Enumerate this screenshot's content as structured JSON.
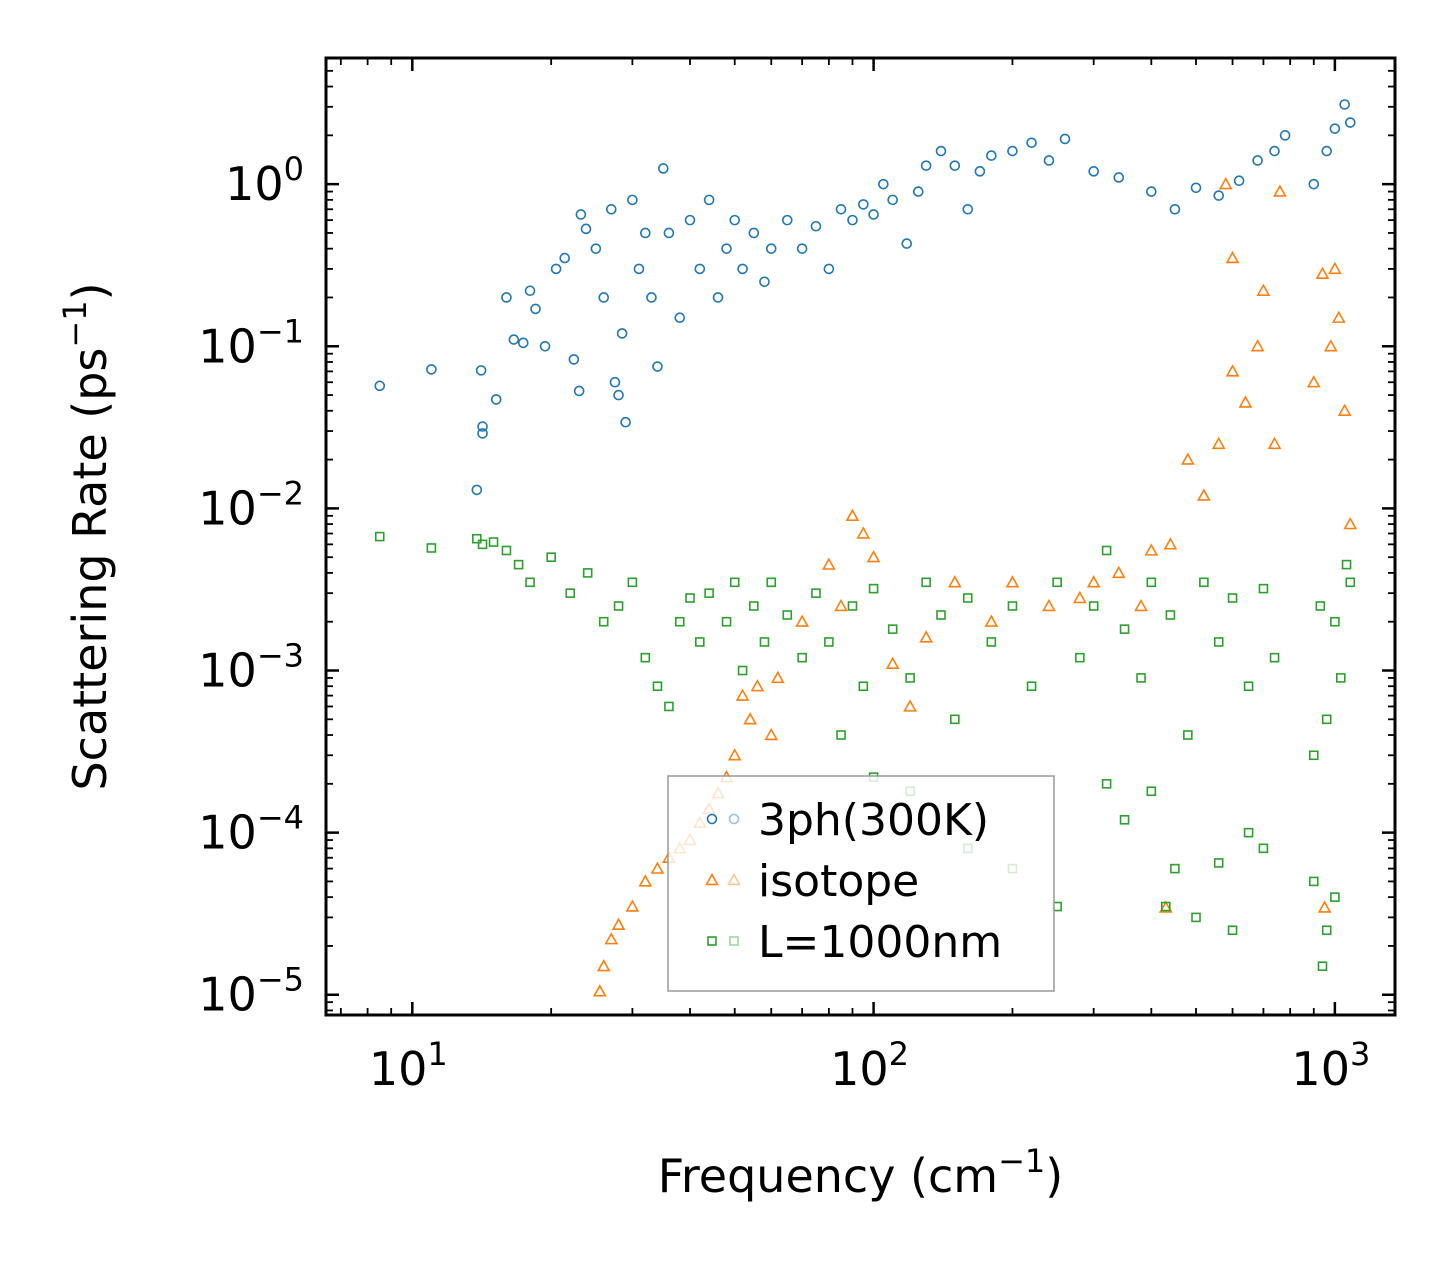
{
  "chart_data": {
    "type": "scatter",
    "xscale": "log",
    "yscale": "log",
    "xlim": [
      6.5,
      1350
    ],
    "ylim": [
      7.5e-06,
      6
    ],
    "xlabel": "Frequency (cm",
    "xlabel_sup": "−1",
    "xlabel_end": ")",
    "ylabel": "Scattering Rate (ps",
    "ylabel_sup": "−1",
    "ylabel_end": ")",
    "xticks": [
      {
        "value": 10,
        "base": "10",
        "exp": "1"
      },
      {
        "value": 100,
        "base": "10",
        "exp": "2"
      },
      {
        "value": 1000,
        "base": "10",
        "exp": "3"
      }
    ],
    "yticks": [
      {
        "value": 1,
        "base": "10",
        "exp": "0"
      },
      {
        "value": 0.1,
        "base": "10",
        "exp": "−1"
      },
      {
        "value": 0.01,
        "base": "10",
        "exp": "−2"
      },
      {
        "value": 0.001,
        "base": "10",
        "exp": "−3"
      },
      {
        "value": 0.0001,
        "base": "10",
        "exp": "−4"
      },
      {
        "value": 1e-05,
        "base": "10",
        "exp": "−5"
      }
    ],
    "legend_position": "lower-center",
    "series": [
      {
        "name": "3ph(300K)",
        "marker": "circle",
        "color": "#1f77b4",
        "points": [
          [
            8.5,
            0.057
          ],
          [
            11,
            0.072
          ],
          [
            13.8,
            0.013
          ],
          [
            14.1,
            0.071
          ],
          [
            14.2,
            0.032
          ],
          [
            14.2,
            0.029
          ],
          [
            15.2,
            0.047
          ],
          [
            16,
            0.2
          ],
          [
            16.6,
            0.11
          ],
          [
            17.4,
            0.105
          ],
          [
            18,
            0.22
          ],
          [
            18.5,
            0.17
          ],
          [
            19.4,
            0.1
          ],
          [
            20.5,
            0.3
          ],
          [
            21.4,
            0.35
          ],
          [
            22.4,
            0.083
          ],
          [
            23.2,
            0.65
          ],
          [
            23.8,
            0.53
          ],
          [
            23,
            0.053
          ],
          [
            25,
            0.4
          ],
          [
            26,
            0.2
          ],
          [
            27,
            0.7
          ],
          [
            27.5,
            0.06
          ],
          [
            28,
            0.05
          ],
          [
            28.5,
            0.12
          ],
          [
            29,
            0.034
          ],
          [
            30,
            0.8
          ],
          [
            31,
            0.3
          ],
          [
            32,
            0.5
          ],
          [
            33,
            0.2
          ],
          [
            34,
            0.075
          ],
          [
            35,
            1.25
          ],
          [
            36,
            0.5
          ],
          [
            38,
            0.15
          ],
          [
            40,
            0.6
          ],
          [
            42,
            0.3
          ],
          [
            44,
            0.8
          ],
          [
            46,
            0.2
          ],
          [
            48,
            0.4
          ],
          [
            50,
            0.6
          ],
          [
            52,
            0.3
          ],
          [
            55,
            0.5
          ],
          [
            58,
            0.25
          ],
          [
            60,
            0.4
          ],
          [
            65,
            0.6
          ],
          [
            70,
            0.4
          ],
          [
            75,
            0.55
          ],
          [
            80,
            0.3
          ],
          [
            85,
            0.7
          ],
          [
            90,
            0.6
          ],
          [
            95,
            0.75
          ],
          [
            100,
            0.65
          ],
          [
            105,
            1.0
          ],
          [
            110,
            0.8
          ],
          [
            118,
            0.43
          ],
          [
            125,
            0.9
          ],
          [
            130,
            1.3
          ],
          [
            140,
            1.6
          ],
          [
            150,
            1.3
          ],
          [
            160,
            0.7
          ],
          [
            170,
            1.2
          ],
          [
            180,
            1.5
          ],
          [
            200,
            1.6
          ],
          [
            220,
            1.8
          ],
          [
            240,
            1.4
          ],
          [
            260,
            1.9
          ],
          [
            300,
            1.2
          ],
          [
            340,
            1.1
          ],
          [
            400,
            0.9
          ],
          [
            450,
            0.7
          ],
          [
            500,
            0.95
          ],
          [
            560,
            0.85
          ],
          [
            620,
            1.05
          ],
          [
            680,
            1.4
          ],
          [
            740,
            1.6
          ],
          [
            780,
            2.0
          ],
          [
            900,
            1.0
          ],
          [
            960,
            1.6
          ],
          [
            1000,
            2.2
          ],
          [
            1050,
            3.1
          ],
          [
            1080,
            2.4
          ]
        ]
      },
      {
        "name": "isotope",
        "marker": "triangle",
        "color": "#ff7f0e",
        "points": [
          [
            25.5,
            1.05e-05
          ],
          [
            26,
            1.5e-05
          ],
          [
            27,
            2.2e-05
          ],
          [
            28,
            2.7e-05
          ],
          [
            30,
            3.5e-05
          ],
          [
            32,
            5e-05
          ],
          [
            34,
            6e-05
          ],
          [
            36,
            7e-05
          ],
          [
            38,
            8e-05
          ],
          [
            40,
            9e-05
          ],
          [
            42,
            0.000115
          ],
          [
            44,
            0.00014
          ],
          [
            46,
            0.000175
          ],
          [
            48,
            0.00022
          ],
          [
            50,
            0.0003
          ],
          [
            52,
            0.0007
          ],
          [
            54,
            0.0005
          ],
          [
            56,
            0.0008
          ],
          [
            60,
            0.0004
          ],
          [
            62,
            0.0009
          ],
          [
            70,
            0.002
          ],
          [
            80,
            0.0045
          ],
          [
            85,
            0.0025
          ],
          [
            90,
            0.009
          ],
          [
            95,
            0.007
          ],
          [
            100,
            0.005
          ],
          [
            110,
            0.0011
          ],
          [
            120,
            0.0006
          ],
          [
            130,
            0.0016
          ],
          [
            150,
            0.0035
          ],
          [
            180,
            0.002
          ],
          [
            200,
            0.0035
          ],
          [
            240,
            0.0025
          ],
          [
            280,
            0.0028
          ],
          [
            300,
            0.0035
          ],
          [
            340,
            0.004
          ],
          [
            380,
            0.0025
          ],
          [
            400,
            0.0055
          ],
          [
            440,
            0.006
          ],
          [
            480,
            0.02
          ],
          [
            520,
            0.012
          ],
          [
            560,
            0.025
          ],
          [
            600,
            0.07
          ],
          [
            640,
            0.045
          ],
          [
            680,
            0.1
          ],
          [
            700,
            0.22
          ],
          [
            740,
            0.025
          ],
          [
            580,
            1.0
          ],
          [
            600,
            0.35
          ],
          [
            760,
            0.9
          ],
          [
            900,
            0.06
          ],
          [
            940,
            0.28
          ],
          [
            980,
            0.1
          ],
          [
            1000,
            0.3
          ],
          [
            1020,
            0.15
          ],
          [
            1050,
            0.04
          ],
          [
            1080,
            0.008
          ],
          [
            430,
            3.45e-05
          ],
          [
            950,
            3.45e-05
          ]
        ]
      },
      {
        "name": "L=1000nm",
        "marker": "square",
        "color": "#2ca02c",
        "points": [
          [
            8.5,
            0.0067
          ],
          [
            11,
            0.0057
          ],
          [
            13.8,
            0.0065
          ],
          [
            14.2,
            0.006
          ],
          [
            15,
            0.0062
          ],
          [
            16,
            0.0055
          ],
          [
            17,
            0.0045
          ],
          [
            18,
            0.0035
          ],
          [
            20,
            0.005
          ],
          [
            22,
            0.003
          ],
          [
            24,
            0.004
          ],
          [
            26,
            0.002
          ],
          [
            28,
            0.0025
          ],
          [
            30,
            0.0035
          ],
          [
            32,
            0.0012
          ],
          [
            34,
            0.0008
          ],
          [
            36,
            0.0006
          ],
          [
            38,
            0.002
          ],
          [
            40,
            0.0028
          ],
          [
            42,
            0.0015
          ],
          [
            44,
            0.003
          ],
          [
            48,
            0.002
          ],
          [
            50,
            0.0035
          ],
          [
            52,
            0.001
          ],
          [
            55,
            0.0025
          ],
          [
            58,
            0.0015
          ],
          [
            60,
            0.0035
          ],
          [
            65,
            0.0022
          ],
          [
            70,
            0.0012
          ],
          [
            75,
            0.003
          ],
          [
            80,
            0.0015
          ],
          [
            85,
            0.0004
          ],
          [
            90,
            0.0025
          ],
          [
            95,
            0.0008
          ],
          [
            100,
            0.0032
          ],
          [
            110,
            0.0018
          ],
          [
            120,
            0.0009
          ],
          [
            130,
            0.0035
          ],
          [
            140,
            0.0022
          ],
          [
            150,
            0.0005
          ],
          [
            160,
            0.0028
          ],
          [
            180,
            0.0015
          ],
          [
            200,
            0.0025
          ],
          [
            220,
            0.0008
          ],
          [
            250,
            0.0035
          ],
          [
            280,
            0.0012
          ],
          [
            300,
            0.0025
          ],
          [
            320,
            0.0055
          ],
          [
            350,
            0.0018
          ],
          [
            380,
            0.0009
          ],
          [
            400,
            0.0035
          ],
          [
            440,
            0.0022
          ],
          [
            480,
            0.0004
          ],
          [
            520,
            0.0035
          ],
          [
            560,
            0.0015
          ],
          [
            600,
            0.0028
          ],
          [
            650,
            0.0008
          ],
          [
            700,
            0.0032
          ],
          [
            740,
            0.0012
          ],
          [
            900,
            0.0003
          ],
          [
            930,
            0.0025
          ],
          [
            960,
            0.0005
          ],
          [
            1000,
            0.002
          ],
          [
            1030,
            0.0009
          ],
          [
            1060,
            0.0045
          ],
          [
            1080,
            0.0035
          ],
          [
            100,
            0.00022
          ],
          [
            120,
            0.00018
          ],
          [
            160,
            8e-05
          ],
          [
            200,
            6e-05
          ],
          [
            250,
            3.5e-05
          ],
          [
            320,
            0.0002
          ],
          [
            350,
            0.00012
          ],
          [
            400,
            0.00018
          ],
          [
            430,
            3.5e-05
          ],
          [
            450,
            6e-05
          ],
          [
            500,
            3e-05
          ],
          [
            560,
            6.5e-05
          ],
          [
            600,
            2.5e-05
          ],
          [
            650,
            0.0001
          ],
          [
            700,
            8e-05
          ],
          [
            900,
            5e-05
          ],
          [
            940,
            1.5e-05
          ],
          [
            960,
            2.5e-05
          ],
          [
            1000,
            4e-05
          ]
        ]
      }
    ]
  }
}
